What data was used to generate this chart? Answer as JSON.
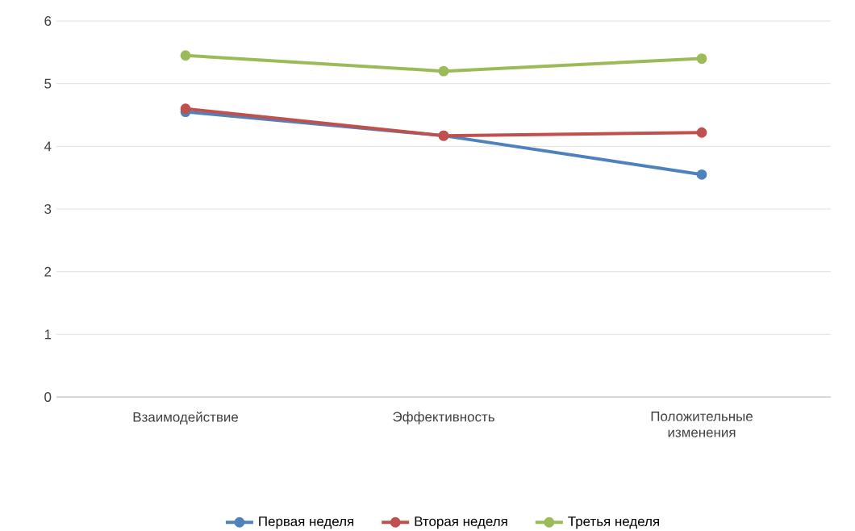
{
  "chart_data": {
    "type": "line",
    "categories": [
      "Взаимодействие",
      "Эффективность",
      "Положительные изменения"
    ],
    "series": [
      {
        "name": "Первая неделя",
        "color": "#4f81bd",
        "values": [
          4.55,
          4.17,
          3.55
        ]
      },
      {
        "name": "Вторая неделя",
        "color": "#c0504d",
        "values": [
          4.6,
          4.17,
          4.22
        ]
      },
      {
        "name": "Третья неделя",
        "color": "#9bbb59",
        "values": [
          5.45,
          5.2,
          5.4
        ]
      }
    ],
    "ylim": [
      0,
      6
    ],
    "yticks": [
      0,
      1,
      2,
      3,
      4,
      5,
      6
    ],
    "grid": "y",
    "legend": "bottom",
    "marker": "circle",
    "line_style": "solid"
  }
}
